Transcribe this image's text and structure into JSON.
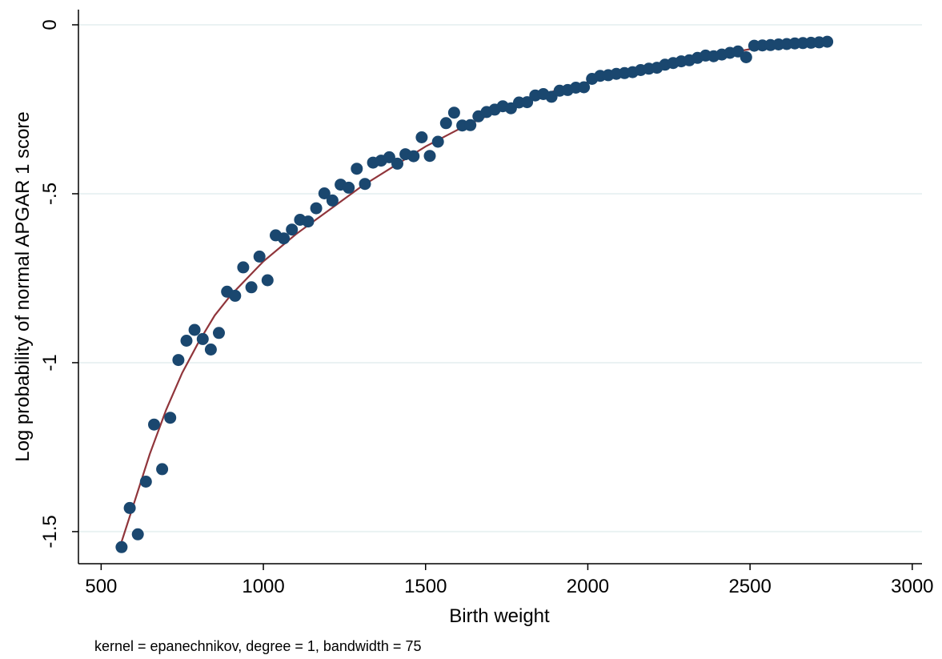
{
  "chart_data": {
    "type": "scatter",
    "title": "",
    "xlabel": "Birth weight",
    "ylabel": "Log probability of normal APGAR 1 score",
    "note": "kernel = epanechnikov, degree = 1, bandwidth = 75",
    "xlim": [
      430,
      3030
    ],
    "ylim": [
      -1.595,
      0.045
    ],
    "x_ticks": [
      500,
      1000,
      1500,
      2000,
      2500,
      3000
    ],
    "x_tick_labels": [
      "500",
      "1000",
      "1500",
      "2000",
      "2500",
      "3000"
    ],
    "y_ticks": [
      -1.5,
      -1,
      -0.5,
      0
    ],
    "y_tick_labels": [
      "-1.5",
      "-1",
      "-.5",
      "0"
    ],
    "grid": "horizontal",
    "colors": {
      "points": "#1a476f",
      "smooth": "#90353b",
      "grid": "#eaf2f3",
      "axis": "#000000"
    },
    "series": [
      {
        "kind": "scatter",
        "x": [
          563,
          588,
          613,
          638,
          663,
          688,
          713,
          738,
          763,
          788,
          813,
          838,
          863,
          888,
          913,
          938,
          963,
          988,
          1013,
          1038,
          1063,
          1088,
          1113,
          1138,
          1163,
          1188,
          1213,
          1238,
          1263,
          1288,
          1313,
          1338,
          1363,
          1388,
          1413,
          1438,
          1463,
          1488,
          1513,
          1538,
          1563,
          1588,
          1613,
          1638,
          1663,
          1688,
          1713,
          1738,
          1763,
          1788,
          1813,
          1838,
          1863,
          1888,
          1913,
          1938,
          1963,
          1988,
          2013,
          2038,
          2063,
          2088,
          2113,
          2138,
          2163,
          2188,
          2213,
          2238,
          2263,
          2288,
          2313,
          2338,
          2363,
          2388,
          2413,
          2438,
          2463,
          2488,
          2513,
          2538,
          2563,
          2588,
          2613,
          2638,
          2663,
          2688,
          2713,
          2738
        ],
        "y": [
          -1.546,
          -1.43,
          -1.508,
          -1.352,
          -1.183,
          -1.315,
          -1.163,
          -0.992,
          -0.935,
          -0.903,
          -0.93,
          -0.961,
          -0.912,
          -0.79,
          -0.802,
          -0.718,
          -0.777,
          -0.686,
          -0.756,
          -0.623,
          -0.632,
          -0.606,
          -0.577,
          -0.582,
          -0.543,
          -0.499,
          -0.52,
          -0.473,
          -0.482,
          -0.426,
          -0.471,
          -0.408,
          -0.402,
          -0.392,
          -0.411,
          -0.383,
          -0.389,
          -0.333,
          -0.388,
          -0.346,
          -0.291,
          -0.26,
          -0.298,
          -0.297,
          -0.271,
          -0.258,
          -0.251,
          -0.241,
          -0.247,
          -0.23,
          -0.229,
          -0.209,
          -0.205,
          -0.213,
          -0.195,
          -0.193,
          -0.186,
          -0.185,
          -0.16,
          -0.151,
          -0.149,
          -0.145,
          -0.143,
          -0.14,
          -0.134,
          -0.13,
          -0.127,
          -0.118,
          -0.113,
          -0.108,
          -0.105,
          -0.098,
          -0.091,
          -0.093,
          -0.088,
          -0.083,
          -0.079,
          -0.096,
          -0.062,
          -0.061,
          -0.06,
          -0.058,
          -0.057,
          -0.055,
          -0.054,
          -0.053,
          -0.052,
          -0.05
        ]
      },
      {
        "kind": "line",
        "x": [
          563,
          600,
          650,
          700,
          750,
          800,
          850,
          900,
          950,
          1000,
          1100,
          1200,
          1300,
          1400,
          1500,
          1600,
          1700,
          1800,
          1900,
          2000,
          2100,
          2200,
          2300,
          2400,
          2500,
          2600,
          2738
        ],
        "y": [
          -1.53,
          -1.42,
          -1.27,
          -1.14,
          -1.03,
          -0.94,
          -0.86,
          -0.8,
          -0.75,
          -0.7,
          -0.62,
          -0.55,
          -0.48,
          -0.42,
          -0.36,
          -0.31,
          -0.265,
          -0.225,
          -0.195,
          -0.17,
          -0.147,
          -0.125,
          -0.105,
          -0.09,
          -0.072,
          -0.063,
          -0.05
        ]
      }
    ]
  }
}
